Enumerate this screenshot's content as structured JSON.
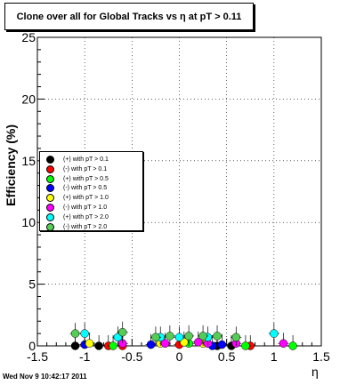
{
  "chart_data": {
    "type": "scatter",
    "title": "Clone  over all for Global Tracks vs η at pT > 0.11",
    "ylabel": "Efficiency (%)",
    "xlabel": "η",
    "xlim": [
      -1.5,
      1.5
    ],
    "ylim": [
      0,
      25
    ],
    "x_ticks": [
      "-1.5",
      "-1",
      "-0.5",
      "0",
      "0.5",
      "1",
      "1.5"
    ],
    "y_ticks": [
      "0",
      "5",
      "10",
      "15",
      "20",
      "25"
    ],
    "grid": true,
    "legend_position": "middle-left",
    "series": [
      {
        "name": "(+) with pT > 0.1",
        "color": "#000000",
        "points": [
          [
            -1.1,
            0.0
          ],
          [
            -0.85,
            0.0
          ],
          [
            0.4,
            0.0
          ],
          [
            0.55,
            0.0
          ]
        ]
      },
      {
        "name": "(-) with pT > 0.1",
        "color": "#ff0000",
        "points": [
          [
            -0.75,
            0.0
          ],
          [
            -0.6,
            0.0
          ],
          [
            0.0,
            0.1
          ],
          [
            0.75,
            0.0
          ]
        ]
      },
      {
        "name": "(+) with pT > 0.5",
        "color": "#00ff00",
        "points": [
          [
            -0.7,
            0.0
          ],
          [
            0.1,
            0.2
          ],
          [
            0.7,
            0.0
          ],
          [
            1.2,
            0.0
          ]
        ]
      },
      {
        "name": "(-) with pT > 0.5",
        "color": "#0000ff",
        "points": [
          [
            -1.0,
            0.1
          ],
          [
            -0.3,
            0.1
          ],
          [
            0.35,
            0.0
          ],
          [
            0.45,
            0.1
          ]
        ]
      },
      {
        "name": "(+) with pT > 1.0",
        "color": "#ffff00",
        "points": [
          [
            -0.95,
            0.2
          ],
          [
            -0.2,
            0.2
          ],
          [
            0.05,
            0.3
          ],
          [
            0.25,
            0.2
          ]
        ]
      },
      {
        "name": "(-) with pT > 1.0",
        "color": "#ff00ff",
        "points": [
          [
            -0.6,
            0.2
          ],
          [
            -0.15,
            0.2
          ],
          [
            0.2,
            0.3
          ],
          [
            0.3,
            0.2
          ],
          [
            0.6,
            0.2
          ],
          [
            1.1,
            0.2
          ]
        ]
      },
      {
        "name": "(+) with pT > 2.0",
        "color": "#00ffff",
        "points": [
          [
            -1.0,
            1.0
          ],
          [
            -0.65,
            0.7
          ],
          [
            -0.2,
            0.7
          ],
          [
            0.0,
            0.7
          ],
          [
            0.3,
            0.7
          ],
          [
            1.0,
            1.0
          ]
        ]
      },
      {
        "name": "(-) with pT > 2.0",
        "color": "#55cc55",
        "points": [
          [
            -1.1,
            1.0
          ],
          [
            -0.6,
            1.1
          ],
          [
            -0.25,
            0.7
          ],
          [
            -0.1,
            0.8
          ],
          [
            0.1,
            0.8
          ],
          [
            0.25,
            0.8
          ],
          [
            0.4,
            0.8
          ],
          [
            0.6,
            0.7
          ]
        ]
      }
    ]
  },
  "footer": {
    "date": "Wed Nov  9 10:42:17 2011"
  }
}
